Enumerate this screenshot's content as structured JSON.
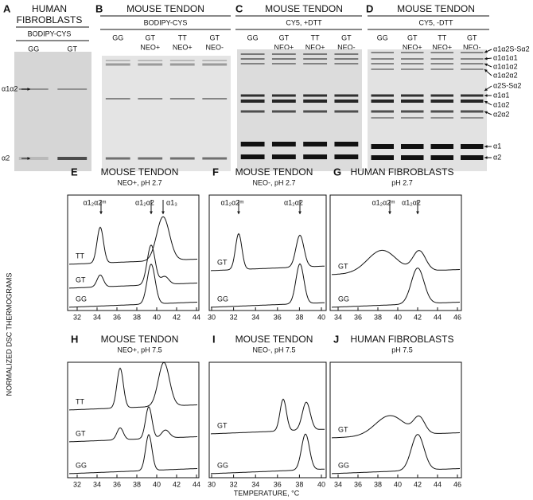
{
  "gels": [
    {
      "letter": "A",
      "title": [
        "HUMAN",
        "FIBROBLASTS"
      ],
      "subtitle": "BODIPY-CYS",
      "lanes": [
        [
          "GG"
        ],
        [
          "GT"
        ]
      ],
      "side_labels": [
        "α1α2",
        "α2"
      ]
    },
    {
      "letter": "B",
      "title": [
        "MOUSE TENDON"
      ],
      "subtitle": "BODIPY-CYS",
      "lanes": [
        [
          "GG"
        ],
        [
          "GT",
          "NEO+"
        ],
        [
          "TT",
          "NEO+"
        ],
        [
          "GT",
          "NEO-"
        ]
      ]
    },
    {
      "letter": "C",
      "title": [
        "MOUSE TENDON"
      ],
      "subtitle": "CY5, +DTT",
      "lanes": [
        [
          "GG"
        ],
        [
          "GT",
          "NEO+"
        ],
        [
          "TT",
          "NEO+"
        ],
        [
          "GT",
          "NEO-"
        ]
      ]
    },
    {
      "letter": "D",
      "title": [
        "MOUSE TENDON"
      ],
      "subtitle": "CY5, -DTT",
      "lanes": [
        [
          "GG"
        ],
        [
          "GT",
          "NEO+"
        ],
        [
          "TT",
          "NEO+"
        ],
        [
          "GT",
          "NEO-"
        ]
      ],
      "band_labels": [
        "α1α2S-Sα2",
        "α1α1α1",
        "α1α1α2",
        "α1α2α2",
        "α2S-Sα2",
        "α1α1",
        "α1α2",
        "α2α2",
        "α1",
        "α2"
      ]
    }
  ],
  "dsc": [
    {
      "letter": "E",
      "title": "MOUSE TENDON",
      "subtitle": "NEO+, pH 2.7",
      "peak_labels": [
        "α1₂α2ᵐ",
        "α1₂α2",
        "α1₃"
      ],
      "curves": [
        "TT",
        "GT",
        "GG"
      ],
      "xticks": [
        32,
        34,
        36,
        38,
        40,
        42,
        44
      ]
    },
    {
      "letter": "F",
      "title": "MOUSE TENDON",
      "subtitle": "NEO-, pH 2.7",
      "peak_labels": [
        "α1₂α2ᵐ",
        "α1₂α2"
      ],
      "curves": [
        "GT",
        "GG"
      ],
      "xticks": [
        30,
        32,
        34,
        36,
        38,
        40
      ]
    },
    {
      "letter": "G",
      "title": "HUMAN FIBROBLASTS",
      "subtitle": "pH 2.7",
      "peak_labels": [
        "α1₂α2ᵐ",
        "α1₂α2"
      ],
      "curves": [
        "GT",
        "GG"
      ],
      "xticks": [
        34,
        36,
        38,
        40,
        42,
        44,
        46
      ]
    },
    {
      "letter": "H",
      "title": "MOUSE TENDON",
      "subtitle": "NEO+, pH 7.5",
      "peak_labels": [],
      "curves": [
        "TT",
        "GT",
        "GG"
      ],
      "xticks": [
        32,
        34,
        36,
        38,
        40,
        42,
        44
      ]
    },
    {
      "letter": "I",
      "title": "MOUSE TENDON",
      "subtitle": "NEO-, pH 7.5",
      "peak_labels": [],
      "curves": [
        "GT",
        "GG"
      ],
      "xticks": [
        30,
        32,
        34,
        36,
        38,
        40
      ]
    },
    {
      "letter": "J",
      "title": "HUMAN FIBROBLASTS",
      "subtitle": "pH 7.5",
      "peak_labels": [],
      "curves": [
        "GT",
        "GG"
      ],
      "xticks": [
        34,
        36,
        38,
        40,
        42,
        44,
        46
      ]
    }
  ],
  "y_axis_label": "NORMALIZED DSC THERMOGRAMS",
  "x_axis_label": "TEMPERATURE, °C"
}
